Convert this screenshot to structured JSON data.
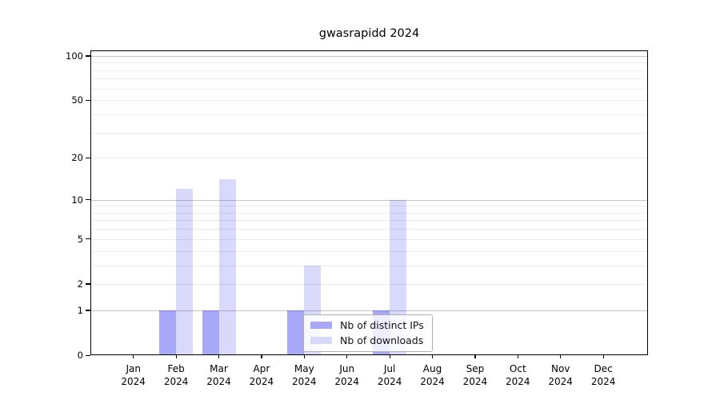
{
  "chart_data": {
    "type": "bar",
    "title": "gwasrapidd 2024",
    "x_categories": [
      "Jan",
      "Feb",
      "Mar",
      "Apr",
      "May",
      "Jun",
      "Jul",
      "Aug",
      "Sep",
      "Oct",
      "Nov",
      "Dec"
    ],
    "x_year": "2024",
    "series": [
      {
        "name": "Nb of distinct IPs",
        "color": "#a8a8f6",
        "fill": "rgba(0,0,238,0.34)",
        "values": [
          0,
          1,
          1,
          0,
          1,
          0,
          1,
          0,
          0,
          0,
          0,
          0
        ]
      },
      {
        "name": "Nb of downloads",
        "color": "#d8d8fa",
        "fill": "rgba(0,0,238,0.15)",
        "values": [
          0,
          12,
          14,
          0,
          3,
          0,
          10,
          0,
          0,
          0,
          0,
          0
        ]
      }
    ],
    "y_scale": "log1p",
    "y_tick_labels": [
      0,
      1,
      2,
      5,
      10,
      20,
      50,
      100
    ],
    "ylim": [
      0,
      109
    ],
    "grid": {
      "minor_values": [
        2,
        3,
        4,
        5,
        6,
        7,
        8,
        9,
        20,
        30,
        40,
        50,
        60,
        70,
        80,
        90
      ],
      "major_values": [
        1,
        10,
        100
      ],
      "minor_color": "#ececec",
      "major_color": "#c6c6c6"
    },
    "legend": {
      "position": "lower center"
    }
  }
}
